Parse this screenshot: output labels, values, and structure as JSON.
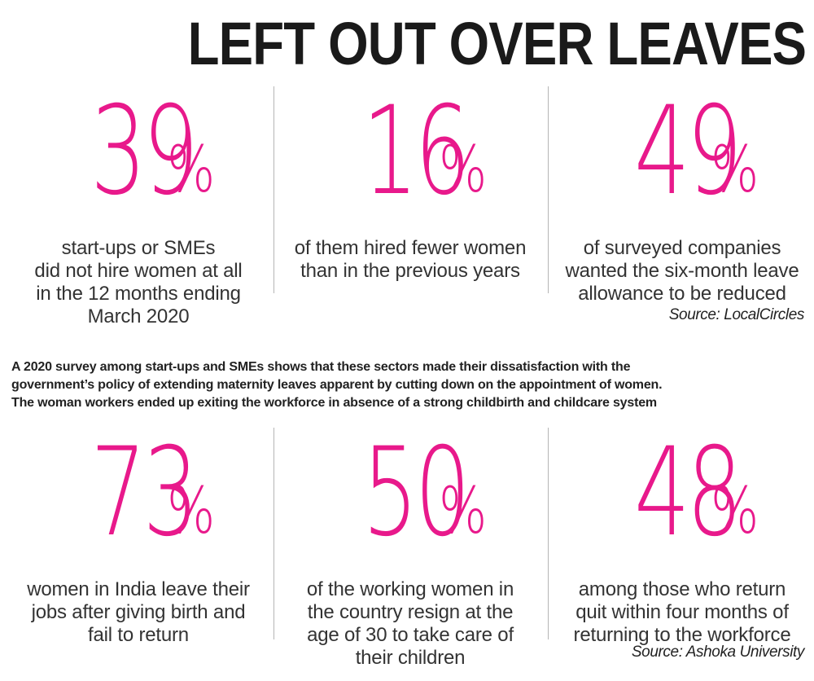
{
  "title": "LEFT OUT OVER LEAVES",
  "accent_color": "#e8198b",
  "section1": {
    "stats": [
      {
        "value": "39",
        "unit": "%",
        "lines": [
          "start-ups or SMEs",
          "did not hire women at all",
          "in the 12 months ending",
          "March 2020"
        ]
      },
      {
        "value": "16",
        "unit": "%",
        "lines": [
          "of them hired fewer women",
          "than in the previous years"
        ]
      },
      {
        "value": "49",
        "unit": "%",
        "lines": [
          "of surveyed companies",
          "wanted the six-month leave",
          "allowance to be reduced"
        ]
      }
    ],
    "source": "Source: LocalCircles"
  },
  "paragraph": [
    "A 2020 survey among start-ups and SMEs shows that these sectors made their dissatisfaction with the",
    "government’s policy of extending maternity leaves apparent by cutting down on the appointment of women.",
    "The woman workers ended up exiting the workforce in absence of a strong childbirth and childcare system"
  ],
  "section2": {
    "stats": [
      {
        "value": "73",
        "unit": "%",
        "lines": [
          "women in India leave their",
          "jobs after giving birth and",
          "fail to return"
        ]
      },
      {
        "value": "50",
        "unit": "%",
        "lines": [
          "of the working women in",
          "the country resign at the",
          "age of 30 to take care of",
          "their children"
        ]
      },
      {
        "value": "48",
        "unit": "%",
        "lines": [
          "among those who return",
          "quit within four months of",
          "returning to the workforce"
        ]
      }
    ],
    "source": "Source: Ashoka University"
  }
}
